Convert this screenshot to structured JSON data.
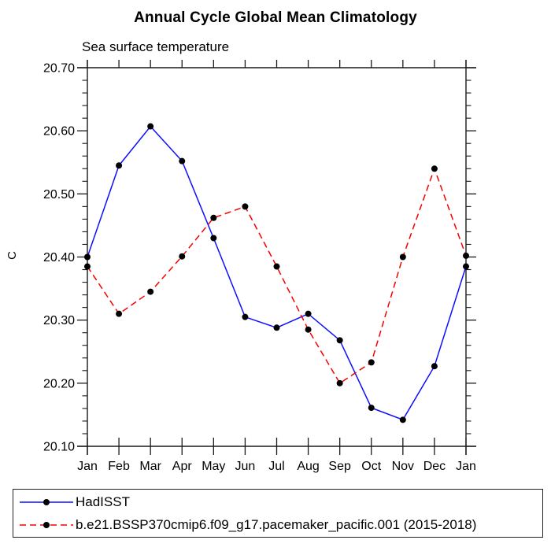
{
  "title": "Annual Cycle Global Mean Climatology",
  "subtitle": "Sea surface temperature",
  "chart_data": {
    "type": "line",
    "title": "Annual Cycle Global Mean Climatology",
    "subtitle": "Sea surface temperature",
    "xlabel": "",
    "ylabel": "C",
    "categories": [
      "Jan",
      "Feb",
      "Mar",
      "Apr",
      "May",
      "Jun",
      "Jul",
      "Aug",
      "Sep",
      "Oct",
      "Nov",
      "Dec",
      "Jan"
    ],
    "series": [
      {
        "name": "HadISST",
        "color": "#0d0dff",
        "line_style": "solid",
        "marker": "black-filled-circle",
        "values": [
          20.4,
          20.545,
          20.607,
          20.552,
          20.43,
          20.305,
          20.288,
          20.31,
          20.268,
          20.161,
          20.142,
          20.227,
          20.385
        ]
      },
      {
        "name": "b.e21.BSSP370cmip6.f09_g17.pacemaker_pacific.001 (2015-2018)",
        "color": "#f50000",
        "line_style": "dashed",
        "marker": "black-filled-circle",
        "values": [
          20.385,
          20.31,
          20.345,
          20.401,
          20.462,
          20.48,
          20.385,
          20.285,
          20.2,
          20.233,
          20.4,
          20.54,
          20.402
        ]
      }
    ],
    "ylim": [
      20.1,
      20.7
    ],
    "ytick_step": 0.1,
    "yminor_step": 0.02,
    "ytick_labels": [
      "20.10",
      "20.20",
      "20.30",
      "20.40",
      "20.50",
      "20.60",
      "20.70"
    ],
    "grid": false,
    "tick_direction": "outward",
    "legend_position": "bottom-left-box"
  },
  "legend": {
    "entries": [
      {
        "label": "HadISST",
        "color": "#0d0dff",
        "style": "solid"
      },
      {
        "label": "b.e21.BSSP370cmip6.f09_g17.pacemaker_pacific.001 (2015-2018)",
        "color": "#f50000",
        "style": "dashed"
      }
    ]
  }
}
